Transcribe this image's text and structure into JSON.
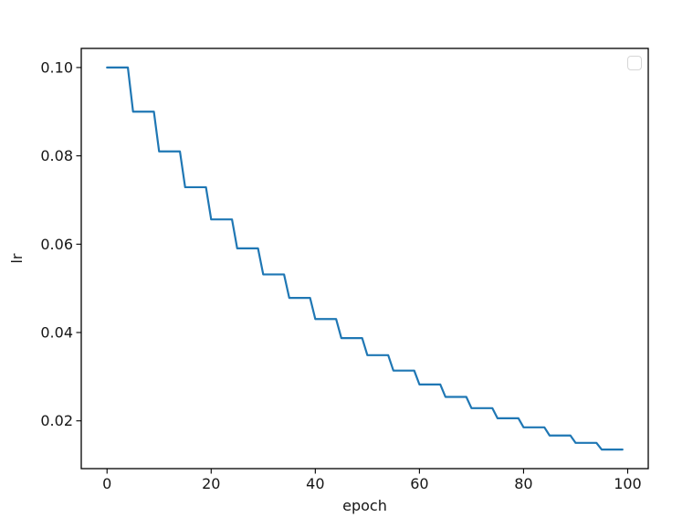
{
  "figure": {
    "background": "#ffffff",
    "frame_color": "#000000",
    "text_color": "#151515"
  },
  "chart_data": {
    "type": "line",
    "title": "",
    "xlabel": "epoch",
    "ylabel": "lr",
    "x_tick_values": [
      0,
      20,
      40,
      60,
      80,
      100
    ],
    "x_tick_labels": [
      "0",
      "20",
      "40",
      "60",
      "80",
      "100"
    ],
    "y_tick_values": [
      0.02,
      0.04,
      0.06,
      0.08,
      0.1
    ],
    "y_tick_labels": [
      "0.02",
      "0.04",
      "0.06",
      "0.08",
      "0.10"
    ],
    "xlim": [
      -4.95,
      103.95
    ],
    "ylim": [
      0.00918395,
      0.10432457
    ],
    "grid": false,
    "legend": {
      "visible": true,
      "position": "upper right",
      "entries": [],
      "note": "empty legend box"
    },
    "line_color": "#1f77b4",
    "series": [
      {
        "name": "lr",
        "x_start": 0,
        "x_end": 99,
        "epochs_per_step": 5,
        "step_values": [
          0.1,
          0.09,
          0.081,
          0.0729,
          0.06561,
          0.059049,
          0.0531441,
          0.04782969,
          0.04304672,
          0.03874205,
          0.03486784,
          0.03138106,
          0.02824295,
          0.02541866,
          0.02287679,
          0.02058911,
          0.0185302,
          0.01667718,
          0.01500946,
          0.01350852
        ],
        "description": "step decay: lr = 0.1 * 0.9^floor(epoch/5), epochs 0-99"
      }
    ]
  }
}
